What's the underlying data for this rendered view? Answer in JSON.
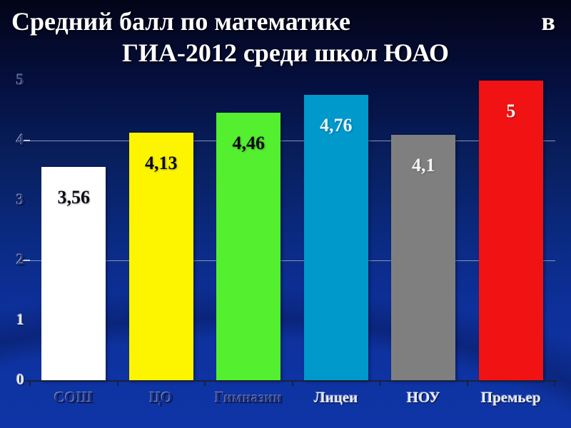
{
  "title": {
    "line1": "Средний балл по математике",
    "line1_right": "в",
    "line2": "ГИА-2012 среди школ ЮАО"
  },
  "chart_data": {
    "type": "bar",
    "title": "Средний балл по математике в ГИА-2012 среди школ ЮАО",
    "categories": [
      "СОШ",
      "ЦО",
      "Гимназии",
      "Лицеи",
      "НОУ",
      "Премьер"
    ],
    "values": [
      3.56,
      4.13,
      4.46,
      4.76,
      4.1,
      5
    ],
    "value_labels": [
      "3,56",
      "4,13",
      "4,46",
      "4,76",
      "4,1",
      "5"
    ],
    "bar_colors": [
      "#ffffff",
      "#fdf500",
      "#54ef2e",
      "#0099cb",
      "#7f7f7f",
      "#f11313"
    ],
    "value_label_colors": [
      "#0b0b12",
      "#0b0b12",
      "#0b0b12",
      "#e9f2fb",
      "#f4f4f4",
      "#ffffff"
    ],
    "category_label_colors": [
      "#1e307c",
      "#1e307c",
      "#1e307c",
      "#e4e9f7",
      "#e4e9f7",
      "#e4e9f7"
    ],
    "y_ticks": [
      "0",
      "1",
      "2",
      "3",
      "4",
      "5"
    ],
    "y_tick_label_colors": [
      "#e3e8f5",
      "#e3e8f5",
      "#20307a",
      "#20307a",
      "#20307a",
      "#20307a"
    ],
    "gridlines_at": [
      2,
      4
    ],
    "ylim": [
      0,
      5
    ],
    "xlabel": "",
    "ylabel": "",
    "legend": "none",
    "grid": "horizontal"
  },
  "colors": {
    "background_top": "#030417",
    "background_bottom": "#0f35a6",
    "title_text": "#ffffff",
    "gridline": "#8a93b5",
    "baseline": "#1c1f36"
  }
}
